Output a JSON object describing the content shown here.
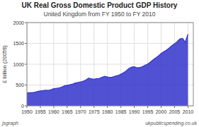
{
  "chart_data": {
    "type": "area",
    "title": "UK Real Gross Domestic Product GDP History",
    "subtitle": "United Kingdom from FY 1950 to FY 2010",
    "ylabel": "£ billion (2005$)",
    "annotations": [
      "jsgraph",
      "ukpublicspending.co.uk"
    ],
    "color": "#3333cc",
    "grid": true,
    "xlim": [
      1950,
      2012
    ],
    "ylim": [
      0,
      2000
    ],
    "xticks": [
      1950,
      1955,
      1960,
      1965,
      1970,
      1975,
      1980,
      1985,
      1990,
      1995,
      2000,
      2005,
      2010
    ],
    "yticks": [
      0,
      500,
      1000,
      1500,
      2000
    ],
    "x": [
      1950,
      1951,
      1952,
      1953,
      1954,
      1955,
      1956,
      1957,
      1958,
      1959,
      1960,
      1961,
      1962,
      1963,
      1964,
      1965,
      1966,
      1967,
      1968,
      1969,
      1970,
      1971,
      1972,
      1973,
      1974,
      1975,
      1976,
      1977,
      1978,
      1979,
      1980,
      1981,
      1982,
      1983,
      1984,
      1985,
      1986,
      1987,
      1988,
      1989,
      1990,
      1991,
      1992,
      1993,
      1994,
      1995,
      1996,
      1997,
      1998,
      1999,
      2000,
      2001,
      2002,
      2003,
      2004,
      2005,
      2006,
      2007,
      2008,
      2009,
      2010
    ],
    "values": [
      310,
      318,
      315,
      328,
      344,
      360,
      368,
      375,
      373,
      390,
      412,
      421,
      432,
      452,
      480,
      495,
      508,
      522,
      549,
      561,
      576,
      591,
      622,
      665,
      649,
      640,
      655,
      660,
      685,
      710,
      695,
      680,
      692,
      715,
      730,
      762,
      795,
      840,
      900,
      930,
      940,
      915,
      920,
      940,
      975,
      1005,
      1050,
      1105,
      1155,
      1200,
      1260,
      1300,
      1340,
      1390,
      1445,
      1490,
      1545,
      1610,
      1620,
      1530,
      1720
    ]
  }
}
